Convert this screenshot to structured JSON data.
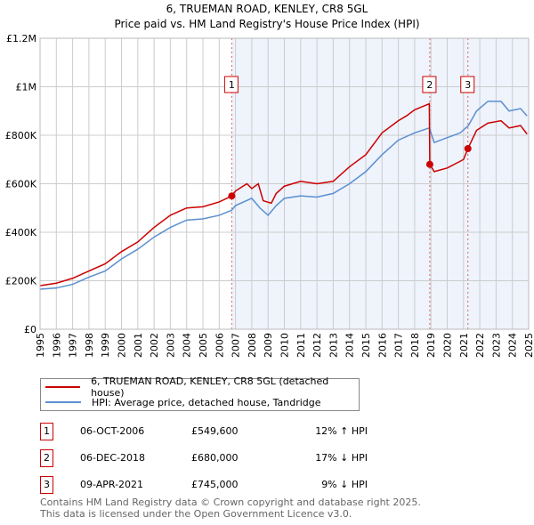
{
  "chart_data": {
    "type": "line",
    "title": "6, TRUEMAN ROAD, KENLEY, CR8 5GL",
    "subtitle": "Price paid vs. HM Land Registry's House Price Index (HPI)",
    "xlim": [
      1995,
      2025
    ],
    "ylim": [
      0,
      1200000
    ],
    "x_ticks": [
      "1995",
      "1996",
      "1997",
      "1998",
      "1999",
      "2000",
      "2001",
      "2002",
      "2003",
      "2004",
      "2005",
      "2006",
      "2007",
      "2008",
      "2009",
      "2010",
      "2011",
      "2012",
      "2013",
      "2014",
      "2015",
      "2016",
      "2017",
      "2018",
      "2019",
      "2020",
      "2021",
      "2022",
      "2023",
      "2024",
      "2025"
    ],
    "y_ticks": [
      {
        "v": 0,
        "l": "£0"
      },
      {
        "v": 200000,
        "l": "£200K"
      },
      {
        "v": 400000,
        "l": "£400K"
      },
      {
        "v": 600000,
        "l": "£600K"
      },
      {
        "v": 800000,
        "l": "£800K"
      },
      {
        "v": 1000000,
        "l": "£1M"
      },
      {
        "v": 1200000,
        "l": "£1.2M"
      }
    ],
    "series": [
      {
        "name": "6, TRUEMAN ROAD, KENLEY, CR8 5GL (detached house)",
        "color": "#cc0000",
        "x": [
          1995,
          1996,
          1997,
          1998,
          1999,
          2000,
          2001,
          2002,
          2003,
          2004,
          2005,
          2006,
          2006.77,
          2007,
          2007.7,
          2008,
          2008.4,
          2008.7,
          2009.2,
          2009.5,
          2010,
          2011,
          2012,
          2013,
          2014,
          2015,
          2016,
          2017,
          2017.5,
          2018,
          2018.9,
          2018.93,
          2019.2,
          2020,
          2021,
          2021.27,
          2021.8,
          2022.5,
          2023.3,
          2023.8,
          2024.5,
          2024.9
        ],
        "y": [
          180000,
          190000,
          210000,
          240000,
          270000,
          320000,
          360000,
          420000,
          470000,
          500000,
          505000,
          525000,
          549600,
          570000,
          600000,
          580000,
          600000,
          530000,
          520000,
          560000,
          590000,
          610000,
          600000,
          610000,
          670000,
          720000,
          810000,
          860000,
          880000,
          905000,
          930000,
          680000,
          650000,
          665000,
          700000,
          745000,
          820000,
          850000,
          860000,
          830000,
          840000,
          805000
        ]
      },
      {
        "name": "HPI: Average price, detached house, Tandridge",
        "color": "#5b8fd0",
        "x": [
          1995,
          1996,
          1997,
          1998,
          1999,
          2000,
          2001,
          2002,
          2003,
          2004,
          2005,
          2006,
          2006.75,
          2007,
          2008,
          2008.5,
          2009,
          2009.5,
          2010,
          2011,
          2012,
          2013,
          2014,
          2015,
          2016,
          2017,
          2018,
          2018.9,
          2019.2,
          2020,
          2020.8,
          2021.3,
          2021.8,
          2022.5,
          2023.3,
          2023.8,
          2024.5,
          2024.9
        ],
        "y": [
          165000,
          170000,
          185000,
          215000,
          240000,
          290000,
          330000,
          380000,
          420000,
          450000,
          455000,
          470000,
          490000,
          510000,
          540000,
          500000,
          470000,
          510000,
          540000,
          550000,
          545000,
          560000,
          600000,
          650000,
          720000,
          780000,
          810000,
          830000,
          770000,
          790000,
          810000,
          840000,
          900000,
          940000,
          940000,
          900000,
          910000,
          880000
        ]
      }
    ],
    "sales": [
      {
        "n": "1",
        "x": 2006.77,
        "y": 549600,
        "date": "06-OCT-2006",
        "price": "£549,600",
        "hpi": "12% ↑ HPI"
      },
      {
        "n": "2",
        "x": 2018.93,
        "y": 680000,
        "date": "06-DEC-2018",
        "price": "£680,000",
        "hpi": "17% ↓ HPI"
      },
      {
        "n": "3",
        "x": 2021.27,
        "y": 745000,
        "date": "09-APR-2021",
        "price": "£745,000",
        "hpi": "9% ↓ HPI"
      }
    ]
  },
  "legend": {
    "red": "6, TRUEMAN ROAD, KENLEY, CR8 5GL (detached house)",
    "blue": "HPI: Average price, detached house, Tandridge"
  },
  "footer": {
    "line1": "Contains HM Land Registry data © Crown copyright and database right 2025.",
    "line2": "This data is licensed under the Open Government Licence v3.0."
  }
}
